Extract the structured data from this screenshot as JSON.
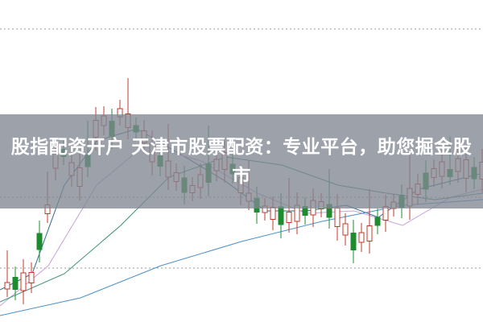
{
  "headline": "股指配资开户 天津市股票配资：专业平台，助您掘金股市",
  "colors": {
    "up": "#c0392b",
    "down": "#1e8c2e",
    "banner": "#808692",
    "ma5": "#2d6b8a",
    "ma10": "#c9a0dc",
    "ma20": "#3a8f7a",
    "ma60": "#4a90c8"
  }
}
